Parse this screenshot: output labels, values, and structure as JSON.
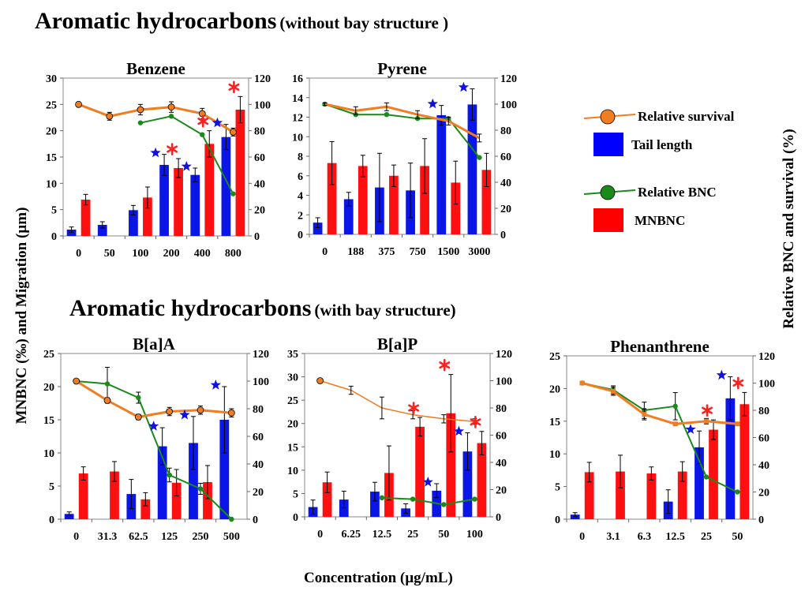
{
  "headings": {
    "without_bay_main": "Aromatic hydrocarbons",
    "without_bay_sub": "(without bay structure )",
    "with_bay_main": "Aromatic hydrocarbons",
    "with_bay_sub": "(with bay structure)"
  },
  "axes_labels": {
    "left": "MNBNC (‰) and Migration (µm)",
    "right": "Relative BNC and survival (%)",
    "bottom": "Concentration (µg/mL)"
  },
  "legend": {
    "items": [
      {
        "label": "Relative survival",
        "kind": "line-circle",
        "color": "#F07D22"
      },
      {
        "label": "Tail length",
        "kind": "box",
        "color": "#0000FF"
      },
      {
        "label": "Relative BNC",
        "kind": "line-circle",
        "color": "#1A8A1A"
      },
      {
        "label": "MNBNC",
        "kind": "box",
        "color": "#FF0000"
      }
    ]
  },
  "colors": {
    "tail": "#0a16e8",
    "mnbnc": "#ff1010",
    "survival": "#F07D22",
    "bnc": "#1A8A1A",
    "star_blue": "#1010E0",
    "star_red": "#FF2020"
  },
  "chart_data": [
    {
      "type": "bar",
      "title": "Benzene",
      "categories": [
        "0",
        "50",
        "100",
        "200",
        "400",
        "800"
      ],
      "ylim_left": [
        0,
        30
      ],
      "yticks_left": [
        "0",
        "5",
        "10",
        "15",
        "20",
        "25",
        "30"
      ],
      "ylim_right": [
        0,
        120
      ],
      "yticks_right": [
        "0",
        "20",
        "40",
        "60",
        "80",
        "100",
        "120"
      ],
      "series": [
        {
          "name": "Tail length",
          "axis": "left",
          "values": [
            1.2,
            2.1,
            4.9,
            13.5,
            11.6,
            18.8
          ],
          "errors": [
            0.5,
            0.6,
            0.9,
            2.0,
            1.3,
            2.4
          ]
        },
        {
          "name": "MNBNC",
          "axis": "left",
          "values": [
            6.9,
            null,
            7.3,
            12.9,
            17.5,
            24.0
          ],
          "errors": [
            1.0,
            null,
            2.0,
            1.8,
            2.5,
            2.5
          ]
        },
        {
          "name": "Relative survival",
          "axis": "right",
          "values": [
            100,
            91,
            96,
            98,
            93,
            79
          ],
          "errors": [
            1,
            3,
            4,
            4,
            4,
            3
          ]
        },
        {
          "name": "Relative BNC",
          "axis": "right",
          "values": [
            null,
            null,
            86,
            91,
            77,
            32
          ],
          "errors": null
        }
      ],
      "stars_blue": [
        "200",
        "400",
        "800"
      ],
      "stars_red": [
        "200",
        "400",
        "800"
      ]
    },
    {
      "type": "bar",
      "title": "Pyrene",
      "categories": [
        "0",
        "188",
        "375",
        "750",
        "1500",
        "3000"
      ],
      "ylim_left": [
        0,
        16
      ],
      "yticks_left": [
        "0",
        "2",
        "4",
        "6",
        "8",
        "10",
        "12",
        "14",
        "16"
      ],
      "ylim_right": [
        0,
        120
      ],
      "yticks_right": [
        "0",
        "20",
        "40",
        "60",
        "80",
        "100",
        "120"
      ],
      "series": [
        {
          "name": "Tail length",
          "axis": "left",
          "values": [
            1.2,
            3.6,
            4.8,
            4.5,
            12.2,
            13.3
          ],
          "errors": [
            0.5,
            0.7,
            3.5,
            2.8,
            1.0,
            1.6
          ]
        },
        {
          "name": "MNBNC",
          "axis": "left",
          "values": [
            7.3,
            7.0,
            6.0,
            7.0,
            5.3,
            6.6
          ],
          "errors": [
            2.2,
            1.1,
            1.1,
            2.8,
            2.2,
            1.7
          ]
        },
        {
          "name": "Relative survival",
          "axis": "right",
          "values": [
            100,
            95,
            98,
            92,
            87,
            74
          ],
          "errors": [
            1,
            3,
            3,
            3,
            3,
            3
          ]
        },
        {
          "name": "Relative BNC",
          "axis": "right",
          "values": [
            100,
            92,
            92,
            89,
            89,
            59
          ],
          "errors": null
        }
      ],
      "stars_blue": [
        "1500",
        "3000"
      ],
      "stars_red": []
    },
    {
      "type": "bar",
      "title": "B[a]A",
      "categories": [
        "0",
        "31.3",
        "62.5",
        "125",
        "250",
        "500"
      ],
      "ylim_left": [
        0,
        25
      ],
      "yticks_left": [
        "0",
        "5",
        "10",
        "15",
        "20",
        "25"
      ],
      "ylim_right": [
        0,
        120
      ],
      "yticks_right": [
        "0",
        "20",
        "40",
        "60",
        "80",
        "100",
        "120"
      ],
      "series": [
        {
          "name": "Tail length",
          "axis": "left",
          "values": [
            0.8,
            null,
            3.8,
            11.0,
            11.5,
            15.0
          ],
          "errors": [
            0.3,
            null,
            2.2,
            2.8,
            4.0,
            5.0
          ]
        },
        {
          "name": "MNBNC",
          "axis": "left",
          "values": [
            6.9,
            7.2,
            3.0,
            5.5,
            5.6,
            null
          ],
          "errors": [
            1.0,
            1.5,
            1.0,
            2.0,
            2.5,
            null
          ]
        },
        {
          "name": "Relative survival",
          "axis": "right",
          "values": [
            100,
            86,
            74,
            78,
            79,
            77
          ],
          "errors": [
            1,
            2,
            2,
            3,
            3,
            3
          ]
        },
        {
          "name": "Relative BNC",
          "axis": "right",
          "values": [
            100,
            98,
            88,
            32,
            22,
            0
          ],
          "errors": [
            0,
            12,
            4,
            5,
            4,
            0
          ]
        }
      ],
      "stars_blue": [
        "125",
        "250",
        "500"
      ],
      "stars_red": []
    },
    {
      "type": "bar",
      "title": "B[a]P",
      "categories": [
        "0",
        "6.25",
        "12.5",
        "25",
        "50",
        "100"
      ],
      "ylim_left": [
        0,
        35
      ],
      "yticks_left": [
        "0",
        "5",
        "10",
        "15",
        "20",
        "25",
        "30",
        "35"
      ],
      "ylim_right": [
        0,
        120
      ],
      "yticks_right": [
        "0",
        "20",
        "40",
        "60",
        "80",
        "100",
        "120"
      ],
      "series": [
        {
          "name": "Tail length",
          "axis": "left",
          "values": [
            2.1,
            3.7,
            5.4,
            1.8,
            5.6,
            14.0
          ],
          "errors": [
            1.5,
            1.8,
            2.0,
            1.0,
            1.5,
            4.0
          ]
        },
        {
          "name": "MNBNC",
          "axis": "left",
          "values": [
            7.4,
            null,
            9.4,
            19.3,
            22.2,
            15.8
          ],
          "errors": [
            2.2,
            null,
            5.8,
            2.0,
            8.3,
            2.5
          ]
        },
        {
          "name": "Relative survival",
          "axis": "right",
          "values": [
            100,
            93,
            80,
            75,
            72,
            70
          ],
          "errors": [
            1,
            3,
            8,
            3,
            3,
            2
          ]
        },
        {
          "name": "Relative BNC",
          "axis": "right",
          "values": [
            null,
            null,
            14,
            13,
            9,
            13
          ],
          "errors": null
        }
      ],
      "stars_blue": [
        "50",
        "100"
      ],
      "stars_red": [
        "25",
        "50",
        "100"
      ]
    },
    {
      "type": "bar",
      "title": "Phenanthrene",
      "categories": [
        "0",
        "3.1",
        "6.3",
        "12.5",
        "25",
        "50"
      ],
      "ylim_left": [
        0,
        25
      ],
      "yticks_left": [
        "0",
        "5",
        "10",
        "15",
        "20",
        "25"
      ],
      "ylim_right": [
        0,
        120
      ],
      "yticks_right": [
        "0",
        "20",
        "40",
        "60",
        "80",
        "100",
        "120"
      ],
      "series": [
        {
          "name": "Tail length",
          "axis": "left",
          "values": [
            0.7,
            null,
            null,
            2.7,
            11.0,
            18.5
          ],
          "errors": [
            0.3,
            null,
            null,
            1.8,
            2.5,
            3.3
          ]
        },
        {
          "name": "MNBNC",
          "axis": "left",
          "values": [
            7.2,
            7.3,
            7.0,
            7.3,
            13.7,
            17.6
          ],
          "errors": [
            1.5,
            2.5,
            1.0,
            1.5,
            1.5,
            1.8
          ]
        },
        {
          "name": "Relative survival",
          "axis": "right",
          "values": [
            100,
            94,
            77,
            70,
            72,
            70
          ],
          "errors": [
            1,
            3,
            4,
            1,
            2,
            1
          ]
        },
        {
          "name": "Relative BNC",
          "axis": "right",
          "values": [
            100,
            95,
            80,
            83,
            31,
            20
          ],
          "errors": [
            0,
            3,
            6,
            10,
            0,
            0
          ]
        }
      ],
      "stars_blue": [
        "25",
        "50"
      ],
      "stars_red": [
        "25",
        "50"
      ]
    }
  ]
}
